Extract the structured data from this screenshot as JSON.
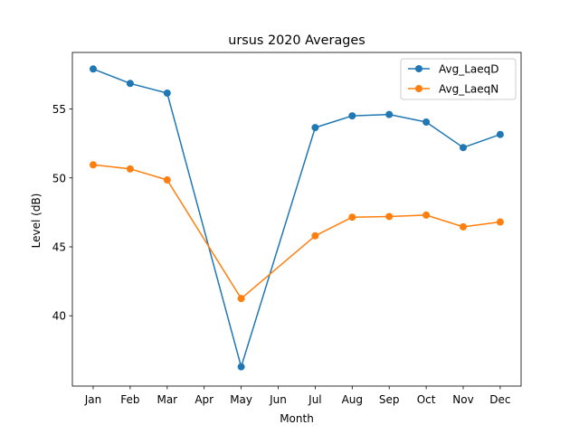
{
  "chart_data": {
    "type": "line",
    "title": "ursus 2020 Averages",
    "xlabel": "Month",
    "ylabel": "Level (dB)",
    "categories": [
      "Jan",
      "Feb",
      "Mar",
      "Apr",
      "May",
      "Jun",
      "Jul",
      "Aug",
      "Sep",
      "Oct",
      "Nov",
      "Dec"
    ],
    "ylim": [
      34.9,
      59.1
    ],
    "yticks": [
      40,
      45,
      50,
      55
    ],
    "grid": false,
    "legend_position": "upper right",
    "series": [
      {
        "name": "Avg_LaeqD",
        "color": "#1f77b4",
        "points": [
          {
            "x": "Jan",
            "y": 57.9
          },
          {
            "x": "Feb",
            "y": 56.85
          },
          {
            "x": "Mar",
            "y": 56.15
          },
          {
            "x": "May",
            "y": 36.3
          },
          {
            "x": "Jul",
            "y": 53.65
          },
          {
            "x": "Aug",
            "y": 54.5
          },
          {
            "x": "Sep",
            "y": 54.6
          },
          {
            "x": "Oct",
            "y": 54.05
          },
          {
            "x": "Nov",
            "y": 52.2
          },
          {
            "x": "Dec",
            "y": 53.15
          }
        ]
      },
      {
        "name": "Avg_LaeqN",
        "color": "#ff7f0e",
        "points": [
          {
            "x": "Jan",
            "y": 50.95
          },
          {
            "x": "Feb",
            "y": 50.65
          },
          {
            "x": "Mar",
            "y": 49.85
          },
          {
            "x": "May",
            "y": 41.25
          },
          {
            "x": "Jul",
            "y": 45.8
          },
          {
            "x": "Aug",
            "y": 47.15
          },
          {
            "x": "Sep",
            "y": 47.2
          },
          {
            "x": "Oct",
            "y": 47.3
          },
          {
            "x": "Nov",
            "y": 46.45
          },
          {
            "x": "Dec",
            "y": 46.8
          }
        ]
      }
    ]
  }
}
